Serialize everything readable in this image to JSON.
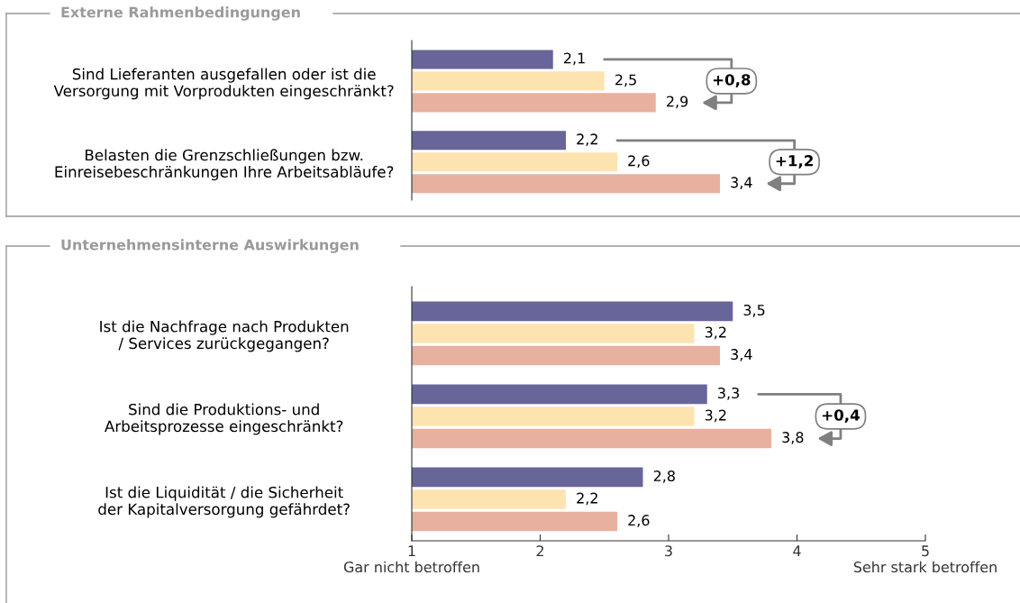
{
  "chart_data": [
    {
      "type": "bar",
      "orientation": "horizontal",
      "title": "Externe Rahmenbedingungen",
      "categories": [
        "Sind Lieferanten ausgefallen oder ist die\nVersorgung mit Vorprodukten eingeschränkt?",
        "Belasten die Grenzschließungen bzw.\nEinreisebeschränkungen Ihre Arbeitsabläufe?"
      ],
      "series": [
        {
          "color": "#67659a",
          "values": [
            2.1,
            2.2
          ],
          "value_labels": [
            "2,1",
            "2,2"
          ]
        },
        {
          "color": "#fde3b0",
          "values": [
            2.5,
            2.6
          ],
          "value_labels": [
            "2,5",
            "2,6"
          ]
        },
        {
          "color": "#e8b09e",
          "values": [
            2.9,
            3.4
          ],
          "value_labels": [
            "2,9",
            "3,4"
          ]
        }
      ],
      "xlim": [
        1,
        5
      ],
      "tick_labels": "y",
      "grid": false,
      "legend": false,
      "annotations": [
        "+0,8",
        "+1,2"
      ]
    },
    {
      "type": "bar",
      "orientation": "horizontal",
      "title": "Unternehmensinterne Auswirkungen",
      "categories": [
        "Ist die Nachfrage nach Produkten\n/ Services zurückgegangen?",
        "Sind die Produktions- und\nArbeitsprozesse eingeschränkt?",
        "Ist die Liquidität / die Sicherheit\nder Kapitalversorgung gefährdet?"
      ],
      "series": [
        {
          "color": "#67659a",
          "values": [
            3.5,
            3.3,
            2.8
          ],
          "value_labels": [
            "3,5",
            "3,3",
            "2,8"
          ]
        },
        {
          "color": "#fde3b0",
          "values": [
            3.2,
            3.2,
            2.2
          ],
          "value_labels": [
            "3,2",
            "3,2",
            "2,2"
          ]
        },
        {
          "color": "#e8b09e",
          "values": [
            3.4,
            3.8,
            2.6
          ],
          "value_labels": [
            "3,4",
            "3,8",
            "2,6"
          ]
        }
      ],
      "xlim": [
        1,
        5
      ],
      "xticks": [
        {
          "value": 1,
          "label": "1\nGar nicht betroffen"
        },
        2,
        3,
        4,
        {
          "value": 5,
          "label": "5\nSehr stark betroffen"
        }
      ],
      "grid": false,
      "legend": false,
      "annotations": [
        "+0,4"
      ]
    }
  ]
}
